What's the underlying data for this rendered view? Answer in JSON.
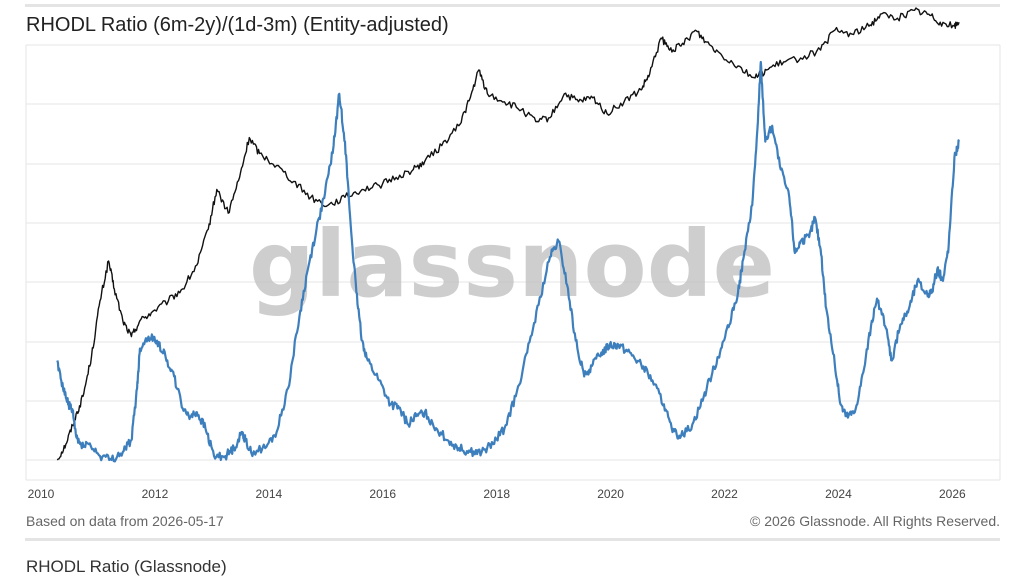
{
  "title": "RHODL Ratio (6m-2y)/(1d-3m) (Entity-adjusted)",
  "watermark": "glassnode",
  "footer": {
    "source": "Based on data from 2026-05-17",
    "copyright": "© 2026 Glassnode. All Rights Reserved."
  },
  "caption": "RHODL Ratio (Glassnode)",
  "colors": {
    "price": "#111111",
    "rhodl": "#3d7fbd",
    "grid": "#e6e6e6",
    "watermark": "#bdbdbd"
  },
  "chart_data": {
    "type": "line",
    "title": "RHODL Ratio (6m-2y)/(1d-3m) (Entity-adjusted)",
    "x_ticks": [
      "2010",
      "2012",
      "2014",
      "2016",
      "2018",
      "2020",
      "2022",
      "2024",
      "2026"
    ],
    "xlim": [
      2010,
      2027.1
    ],
    "y_tick_labels": "none",
    "grid": true,
    "legend": "none",
    "series": [
      {
        "key": "price",
        "points": [
          [
            2010.55,
            0.0
          ],
          [
            2010.7,
            0.04
          ],
          [
            2010.85,
            0.1
          ],
          [
            2011.0,
            0.16
          ],
          [
            2011.15,
            0.26
          ],
          [
            2011.3,
            0.4
          ],
          [
            2011.45,
            0.5
          ],
          [
            2011.55,
            0.43
          ],
          [
            2011.7,
            0.35
          ],
          [
            2011.85,
            0.31
          ],
          [
            2012.0,
            0.35
          ],
          [
            2012.2,
            0.37
          ],
          [
            2012.5,
            0.4
          ],
          [
            2012.75,
            0.43
          ],
          [
            2013.0,
            0.49
          ],
          [
            2013.2,
            0.58
          ],
          [
            2013.35,
            0.68
          ],
          [
            2013.55,
            0.62
          ],
          [
            2013.75,
            0.71
          ],
          [
            2013.92,
            0.81
          ],
          [
            2014.1,
            0.77
          ],
          [
            2014.4,
            0.74
          ],
          [
            2014.7,
            0.7
          ],
          [
            2015.0,
            0.66
          ],
          [
            2015.3,
            0.64
          ],
          [
            2015.6,
            0.66
          ],
          [
            2015.9,
            0.68
          ],
          [
            2016.2,
            0.69
          ],
          [
            2016.5,
            0.71
          ],
          [
            2016.8,
            0.73
          ],
          [
            2017.0,
            0.75
          ],
          [
            2017.3,
            0.79
          ],
          [
            2017.6,
            0.84
          ],
          [
            2017.8,
            0.91
          ],
          [
            2017.95,
            0.98
          ],
          [
            2018.1,
            0.92
          ],
          [
            2018.4,
            0.9
          ],
          [
            2018.7,
            0.88
          ],
          [
            2018.95,
            0.85
          ],
          [
            2019.2,
            0.86
          ],
          [
            2019.45,
            0.92
          ],
          [
            2019.7,
            0.9
          ],
          [
            2019.95,
            0.91
          ],
          [
            2020.2,
            0.87
          ],
          [
            2020.5,
            0.9
          ],
          [
            2020.8,
            0.93
          ],
          [
            2020.95,
            0.97
          ],
          [
            2021.15,
            1.06
          ],
          [
            2021.3,
            1.03
          ],
          [
            2021.5,
            1.04
          ],
          [
            2021.75,
            1.08
          ],
          [
            2021.95,
            1.05
          ],
          [
            2022.2,
            1.02
          ],
          [
            2022.5,
            0.99
          ],
          [
            2022.8,
            0.96
          ],
          [
            2023.0,
            0.98
          ],
          [
            2023.3,
            1.0
          ],
          [
            2023.6,
            1.01
          ],
          [
            2023.95,
            1.03
          ],
          [
            2024.2,
            1.08
          ],
          [
            2024.5,
            1.07
          ],
          [
            2024.8,
            1.09
          ],
          [
            2025.0,
            1.12
          ],
          [
            2025.3,
            1.11
          ],
          [
            2025.6,
            1.13
          ],
          [
            2025.85,
            1.12
          ],
          [
            2026.05,
            1.1
          ],
          [
            2026.3,
            1.09
          ],
          [
            2026.38,
            1.1
          ]
        ]
      },
      {
        "key": "rhodl",
        "points": [
          [
            2010.55,
            0.25
          ],
          [
            2010.65,
            0.18
          ],
          [
            2010.75,
            0.14
          ],
          [
            2010.82,
            0.12
          ],
          [
            2010.88,
            0.06
          ],
          [
            2010.95,
            0.04
          ],
          [
            2011.1,
            0.04
          ],
          [
            2011.3,
            0.01
          ],
          [
            2011.5,
            0.0
          ],
          [
            2011.7,
            0.02
          ],
          [
            2011.85,
            0.05
          ],
          [
            2011.95,
            0.18
          ],
          [
            2012.0,
            0.28
          ],
          [
            2012.15,
            0.31
          ],
          [
            2012.3,
            0.3
          ],
          [
            2012.45,
            0.26
          ],
          [
            2012.6,
            0.21
          ],
          [
            2012.75,
            0.13
          ],
          [
            2012.9,
            0.11
          ],
          [
            2013.0,
            0.12
          ],
          [
            2013.15,
            0.08
          ],
          [
            2013.3,
            0.01
          ],
          [
            2013.5,
            0.01
          ],
          [
            2013.65,
            0.03
          ],
          [
            2013.8,
            0.07
          ],
          [
            2013.85,
            0.05
          ],
          [
            2013.95,
            0.02
          ],
          [
            2014.2,
            0.03
          ],
          [
            2014.4,
            0.07
          ],
          [
            2014.6,
            0.18
          ],
          [
            2014.8,
            0.36
          ],
          [
            2014.95,
            0.48
          ],
          [
            2015.1,
            0.58
          ],
          [
            2015.25,
            0.67
          ],
          [
            2015.4,
            0.79
          ],
          [
            2015.5,
            0.92
          ],
          [
            2015.6,
            0.8
          ],
          [
            2015.7,
            0.59
          ],
          [
            2015.8,
            0.42
          ],
          [
            2015.9,
            0.3
          ],
          [
            2016.0,
            0.25
          ],
          [
            2016.2,
            0.2
          ],
          [
            2016.4,
            0.14
          ],
          [
            2016.55,
            0.13
          ],
          [
            2016.7,
            0.09
          ],
          [
            2016.85,
            0.11
          ],
          [
            2017.0,
            0.12
          ],
          [
            2017.2,
            0.08
          ],
          [
            2017.4,
            0.05
          ],
          [
            2017.6,
            0.03
          ],
          [
            2017.8,
            0.02
          ],
          [
            2018.0,
            0.02
          ],
          [
            2018.2,
            0.04
          ],
          [
            2018.4,
            0.08
          ],
          [
            2018.6,
            0.16
          ],
          [
            2018.8,
            0.27
          ],
          [
            2019.0,
            0.39
          ],
          [
            2019.2,
            0.51
          ],
          [
            2019.35,
            0.55
          ],
          [
            2019.5,
            0.44
          ],
          [
            2019.65,
            0.3
          ],
          [
            2019.8,
            0.21
          ],
          [
            2019.95,
            0.24
          ],
          [
            2020.1,
            0.27
          ],
          [
            2020.25,
            0.29
          ],
          [
            2020.4,
            0.29
          ],
          [
            2020.6,
            0.27
          ],
          [
            2020.8,
            0.24
          ],
          [
            2021.0,
            0.2
          ],
          [
            2021.2,
            0.14
          ],
          [
            2021.35,
            0.07
          ],
          [
            2021.5,
            0.06
          ],
          [
            2021.7,
            0.09
          ],
          [
            2021.9,
            0.16
          ],
          [
            2022.05,
            0.22
          ],
          [
            2022.2,
            0.28
          ],
          [
            2022.35,
            0.34
          ],
          [
            2022.5,
            0.42
          ],
          [
            2022.6,
            0.51
          ],
          [
            2022.75,
            0.64
          ],
          [
            2022.85,
            0.85
          ],
          [
            2022.9,
            1.0
          ],
          [
            2022.98,
            0.8
          ],
          [
            2023.1,
            0.84
          ],
          [
            2023.25,
            0.73
          ],
          [
            2023.4,
            0.66
          ],
          [
            2023.5,
            0.52
          ],
          [
            2023.6,
            0.55
          ],
          [
            2023.75,
            0.56
          ],
          [
            2023.85,
            0.61
          ],
          [
            2023.95,
            0.53
          ],
          [
            2024.05,
            0.38
          ],
          [
            2024.2,
            0.24
          ],
          [
            2024.3,
            0.14
          ],
          [
            2024.4,
            0.11
          ],
          [
            2024.55,
            0.12
          ],
          [
            2024.7,
            0.22
          ],
          [
            2024.85,
            0.35
          ],
          [
            2024.95,
            0.4
          ],
          [
            2025.1,
            0.33
          ],
          [
            2025.2,
            0.25
          ],
          [
            2025.35,
            0.34
          ],
          [
            2025.5,
            0.38
          ],
          [
            2025.65,
            0.45
          ],
          [
            2025.8,
            0.42
          ],
          [
            2025.9,
            0.42
          ],
          [
            2026.0,
            0.48
          ],
          [
            2026.1,
            0.45
          ],
          [
            2026.2,
            0.54
          ],
          [
            2026.3,
            0.76
          ],
          [
            2026.38,
            0.8
          ]
        ]
      }
    ]
  }
}
